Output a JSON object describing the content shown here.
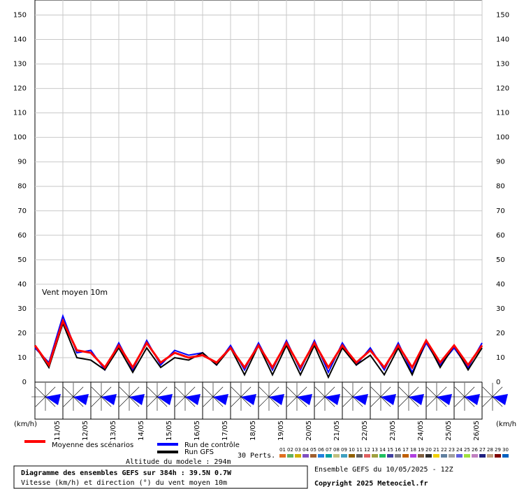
{
  "chart_data": {
    "type": "line",
    "annotation": "Vent moyen 10m",
    "y_unit_left": "(km/h)",
    "y_unit_right": "(km/h)",
    "xlim": [
      0,
      384
    ],
    "ylim": [
      0,
      155
    ],
    "yticks": [
      0,
      10,
      20,
      30,
      40,
      50,
      60,
      70,
      80,
      90,
      100,
      110,
      120,
      130,
      140,
      150
    ],
    "xticks": [
      {
        "value": 12,
        "label": "11/05"
      },
      {
        "value": 36,
        "label": "12/05"
      },
      {
        "value": 60,
        "label": "13/05"
      },
      {
        "value": 84,
        "label": "14/05"
      },
      {
        "value": 108,
        "label": "15/05"
      },
      {
        "value": 132,
        "label": "16/05"
      },
      {
        "value": 156,
        "label": "17/05"
      },
      {
        "value": 180,
        "label": "18/05"
      },
      {
        "value": 204,
        "label": "19/05"
      },
      {
        "value": 228,
        "label": "20/05"
      },
      {
        "value": 252,
        "label": "21/05"
      },
      {
        "value": 276,
        "label": "22/05"
      },
      {
        "value": 300,
        "label": "23/05"
      },
      {
        "value": 324,
        "label": "24/05"
      },
      {
        "value": 348,
        "label": "25/05"
      },
      {
        "value": 372,
        "label": "26/05"
      }
    ],
    "grid": true,
    "x": [
      0,
      12,
      24,
      36,
      48,
      60,
      72,
      84,
      96,
      108,
      120,
      132,
      144,
      156,
      168,
      180,
      192,
      204,
      216,
      228,
      240,
      252,
      264,
      276,
      288,
      300,
      312,
      324,
      336,
      348,
      360,
      372,
      384
    ],
    "series": [
      {
        "name": "Moyenne des scénarios",
        "color": "#ff0000",
        "width": 3,
        "values": [
          15,
          7,
          25,
          13,
          12,
          6,
          15,
          6,
          16,
          8,
          12,
          10,
          11,
          8,
          14,
          6,
          15,
          6,
          16,
          6,
          16,
          6,
          15,
          8,
          13,
          6,
          15,
          6,
          17,
          8,
          15,
          7,
          15
        ]
      },
      {
        "name": "Run de contrôle",
        "color": "#0000ff",
        "width": 2,
        "values": [
          14,
          8,
          27,
          12,
          13,
          5,
          16,
          5,
          17,
          7,
          13,
          11,
          12,
          7,
          15,
          5,
          16,
          5,
          17,
          5,
          17,
          4,
          16,
          7,
          14,
          5,
          16,
          4,
          16,
          7,
          14,
          6,
          16
        ]
      },
      {
        "name": "Run GFS",
        "color": "#000000",
        "width": 2,
        "values": [
          15,
          6,
          24,
          10,
          9,
          5,
          14,
          4,
          14,
          6,
          10,
          9,
          12,
          7,
          14,
          3,
          15,
          3,
          15,
          3,
          15,
          2,
          14,
          7,
          11,
          3,
          14,
          3,
          17,
          6,
          15,
          5,
          14
        ]
      }
    ],
    "perturbations_label": "30 Perts.",
    "perturbations": [
      {
        "label": "01",
        "color": "#e07020"
      },
      {
        "label": "02",
        "color": "#60b060"
      },
      {
        "label": "03",
        "color": "#d0b000"
      },
      {
        "label": "04",
        "color": "#8050c0"
      },
      {
        "label": "05",
        "color": "#a06030"
      },
      {
        "label": "06",
        "color": "#2080e0"
      },
      {
        "label": "07",
        "color": "#00a0a0"
      },
      {
        "label": "08",
        "color": "#c0c080"
      },
      {
        "label": "09",
        "color": "#40a0c0"
      },
      {
        "label": "10",
        "color": "#906000"
      },
      {
        "label": "11",
        "color": "#606060"
      },
      {
        "label": "12",
        "color": "#e06060"
      },
      {
        "label": "13",
        "color": "#a0a040"
      },
      {
        "label": "14",
        "color": "#20c060"
      },
      {
        "label": "15",
        "color": "#4040a0"
      },
      {
        "label": "16",
        "color": "#808080"
      },
      {
        "label": "17",
        "color": "#c06000"
      },
      {
        "label": "18",
        "color": "#b040e0"
      },
      {
        "label": "19",
        "color": "#806040"
      },
      {
        "label": "20",
        "color": "#303030"
      },
      {
        "label": "21",
        "color": "#f0d000"
      },
      {
        "label": "22",
        "color": "#6080a0"
      },
      {
        "label": "23",
        "color": "#a0a0a0"
      },
      {
        "label": "24",
        "color": "#6060e0"
      },
      {
        "label": "25",
        "color": "#a0e040"
      },
      {
        "label": "26",
        "color": "#c080c0"
      },
      {
        "label": "27",
        "color": "#202080"
      },
      {
        "label": "28",
        "color": "#c0a080"
      },
      {
        "label": "29",
        "color": "#800000"
      },
      {
        "label": "30",
        "color": "#0060c0"
      }
    ],
    "altitude": "Altitude du modele : 294m",
    "footer_title": "Diagramme des ensembles GEFS sur 384h : 39.5N 0.7W",
    "footer_subtitle": "Vitesse (km/h) et direction (°) du vent moyen 10m",
    "run_info": "Ensemble GEFS du 10/05/2025 - 12Z",
    "copyright": "Copyright 2025 Meteociel.fr"
  }
}
